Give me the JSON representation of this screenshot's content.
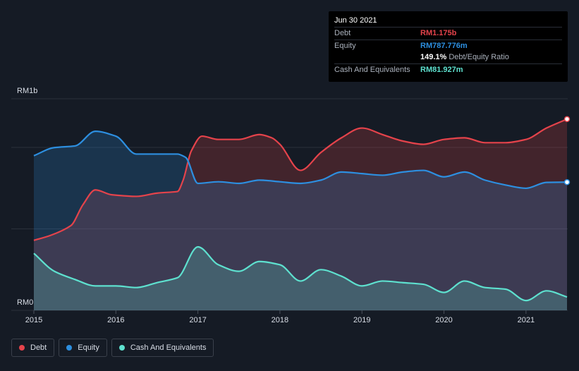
{
  "chart_data": {
    "type": "area",
    "y_axis_top_label": "RM1b",
    "y_axis_bottom_label": "RM0",
    "ylim": [
      0,
      1.3
    ],
    "xlim": [
      2015.0,
      2021.5
    ],
    "x_ticks": [
      2015,
      2016,
      2017,
      2018,
      2019,
      2020,
      2021
    ],
    "x_tick_labels": [
      "2015",
      "2016",
      "2017",
      "2018",
      "2019",
      "2020",
      "2021"
    ],
    "series": [
      {
        "name": "Debt",
        "color": "#e5434b",
        "x": [
          2015.0,
          2015.2,
          2015.45,
          2015.6,
          2015.75,
          2015.95,
          2016.25,
          2016.5,
          2016.75,
          2016.82,
          2016.92,
          2017.05,
          2017.25,
          2017.5,
          2017.75,
          2017.9,
          2018.0,
          2018.25,
          2018.5,
          2018.75,
          2019.0,
          2019.25,
          2019.5,
          2019.75,
          2020.0,
          2020.25,
          2020.5,
          2020.75,
          2021.0,
          2021.25,
          2021.5
        ],
        "values": [
          0.43,
          0.46,
          0.52,
          0.65,
          0.74,
          0.71,
          0.7,
          0.72,
          0.73,
          0.8,
          0.98,
          1.07,
          1.05,
          1.05,
          1.08,
          1.06,
          1.02,
          0.86,
          0.97,
          1.06,
          1.12,
          1.08,
          1.04,
          1.02,
          1.05,
          1.06,
          1.03,
          1.03,
          1.05,
          1.12,
          1.175
        ]
      },
      {
        "name": "Equity",
        "color": "#2d8fe0",
        "x": [
          2015.0,
          2015.25,
          2015.5,
          2015.75,
          2016.0,
          2016.25,
          2016.5,
          2016.75,
          2016.85,
          2017.0,
          2017.25,
          2017.5,
          2017.75,
          2018.0,
          2018.25,
          2018.5,
          2018.75,
          2019.0,
          2019.25,
          2019.5,
          2019.75,
          2020.0,
          2020.25,
          2020.5,
          2020.75,
          2021.0,
          2021.25,
          2021.5
        ],
        "values": [
          0.95,
          1.0,
          1.01,
          1.1,
          1.07,
          0.96,
          0.96,
          0.96,
          0.94,
          0.78,
          0.79,
          0.78,
          0.8,
          0.79,
          0.78,
          0.8,
          0.85,
          0.84,
          0.83,
          0.85,
          0.86,
          0.82,
          0.85,
          0.8,
          0.77,
          0.75,
          0.786,
          0.787776
        ]
      },
      {
        "name": "Cash And Equivalents",
        "color": "#5ee1cf",
        "x": [
          2015.0,
          2015.25,
          2015.5,
          2015.75,
          2016.0,
          2016.25,
          2016.5,
          2016.75,
          2017.0,
          2017.25,
          2017.5,
          2017.75,
          2018.0,
          2018.25,
          2018.5,
          2018.75,
          2019.0,
          2019.25,
          2019.5,
          2019.75,
          2020.0,
          2020.25,
          2020.5,
          2020.75,
          2021.0,
          2021.25,
          2021.5
        ],
        "values": [
          0.35,
          0.24,
          0.19,
          0.15,
          0.15,
          0.14,
          0.17,
          0.2,
          0.39,
          0.28,
          0.24,
          0.3,
          0.28,
          0.18,
          0.25,
          0.21,
          0.15,
          0.18,
          0.17,
          0.16,
          0.11,
          0.18,
          0.14,
          0.13,
          0.06,
          0.12,
          0.081927
        ]
      }
    ]
  },
  "tooltip": {
    "date": "Jun 30 2021",
    "rows": [
      {
        "label": "Debt",
        "value": "RM1.175b",
        "color": "#e5434b"
      },
      {
        "label": "Equity",
        "value": "RM787.776m",
        "color": "#2d8fe0"
      }
    ],
    "ratio_value": "149.1%",
    "ratio_label": "Debt/Equity Ratio",
    "cash_label": "Cash And Equivalents",
    "cash_value": "RM81.927m",
    "cash_color": "#5ee1cf"
  },
  "legend": {
    "items": [
      {
        "label": "Debt",
        "color": "#e5434b"
      },
      {
        "label": "Equity",
        "color": "#2d8fe0"
      },
      {
        "label": "Cash And Equivalents",
        "color": "#5ee1cf"
      }
    ]
  }
}
